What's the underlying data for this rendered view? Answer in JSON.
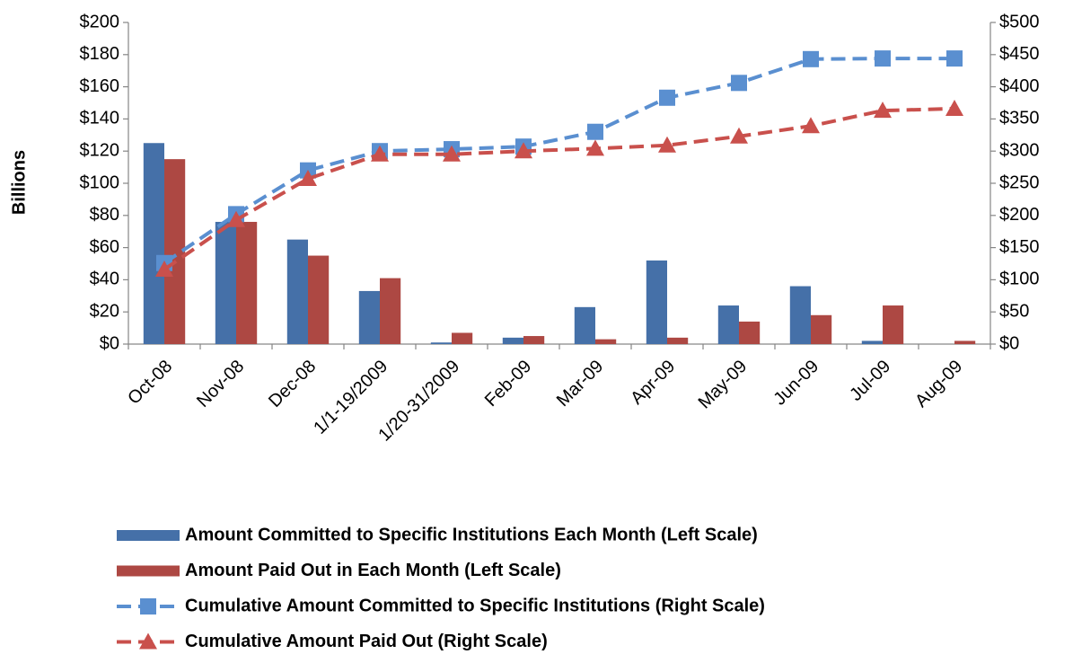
{
  "chart_data": {
    "type": "combo",
    "y_label": "Billions",
    "categories": [
      "Oct-08",
      "Nov-08",
      "Dec-08",
      "1/1-19/2009",
      "1/20-31/2009",
      "Feb-09",
      "Mar-09",
      "Apr-09",
      "May-09",
      "Jun-09",
      "Jul-09",
      "Aug-09"
    ],
    "series": [
      {
        "name": "Amount Committed to Specific Institutions Each Month (Left Scale)",
        "type": "bar",
        "axis": "y",
        "color": "#4570a8",
        "values": [
          125,
          76,
          65,
          33,
          1,
          4,
          23,
          52,
          24,
          36,
          2,
          0
        ]
      },
      {
        "name": "Amount Paid Out in Each Month (Left Scale)",
        "type": "bar",
        "axis": "y",
        "color": "#ad4843",
        "values": [
          115,
          76,
          55,
          41,
          7,
          5,
          3,
          4,
          14,
          18,
          24,
          2
        ]
      },
      {
        "name": "Cumulative Amount Committed to Specific Institutions (Right Scale)",
        "type": "line",
        "axis": "y2",
        "marker": "square",
        "color": "#5a8fd0",
        "values": [
          126,
          202,
          270,
          300,
          303,
          307,
          330,
          383,
          406,
          443,
          444,
          444
        ]
      },
      {
        "name": "Cumulative Amount Paid Out (Right Scale)",
        "type": "line",
        "axis": "y2",
        "marker": "triangle",
        "color": "#c9504c",
        "values": [
          116,
          193,
          257,
          295,
          295,
          300,
          304,
          309,
          323,
          339,
          363,
          366
        ]
      }
    ],
    "ylim": [
      0,
      200
    ],
    "yticks": [
      {
        "value": 0,
        "label": "$0"
      },
      {
        "value": 20,
        "label": "$20"
      },
      {
        "value": 40,
        "label": "$40"
      },
      {
        "value": 60,
        "label": "$60"
      },
      {
        "value": 80,
        "label": "$80"
      },
      {
        "value": 100,
        "label": "$100"
      },
      {
        "value": 120,
        "label": "$120"
      },
      {
        "value": 140,
        "label": "$140"
      },
      {
        "value": 160,
        "label": "$160"
      },
      {
        "value": 180,
        "label": "$180"
      },
      {
        "value": 200,
        "label": "$200"
      }
    ],
    "y2lim": [
      0,
      500
    ],
    "y2ticks": [
      {
        "value": 0,
        "label": "$0"
      },
      {
        "value": 50,
        "label": "$50"
      },
      {
        "value": 100,
        "label": "$100"
      },
      {
        "value": 150,
        "label": "$150"
      },
      {
        "value": 200,
        "label": "$200"
      },
      {
        "value": 250,
        "label": "$250"
      },
      {
        "value": 300,
        "label": "$300"
      },
      {
        "value": 350,
        "label": "$350"
      },
      {
        "value": 400,
        "label": "$400"
      },
      {
        "value": 450,
        "label": "$450"
      },
      {
        "value": 500,
        "label": "$500"
      }
    ],
    "grid": false,
    "legend": "bottom"
  }
}
